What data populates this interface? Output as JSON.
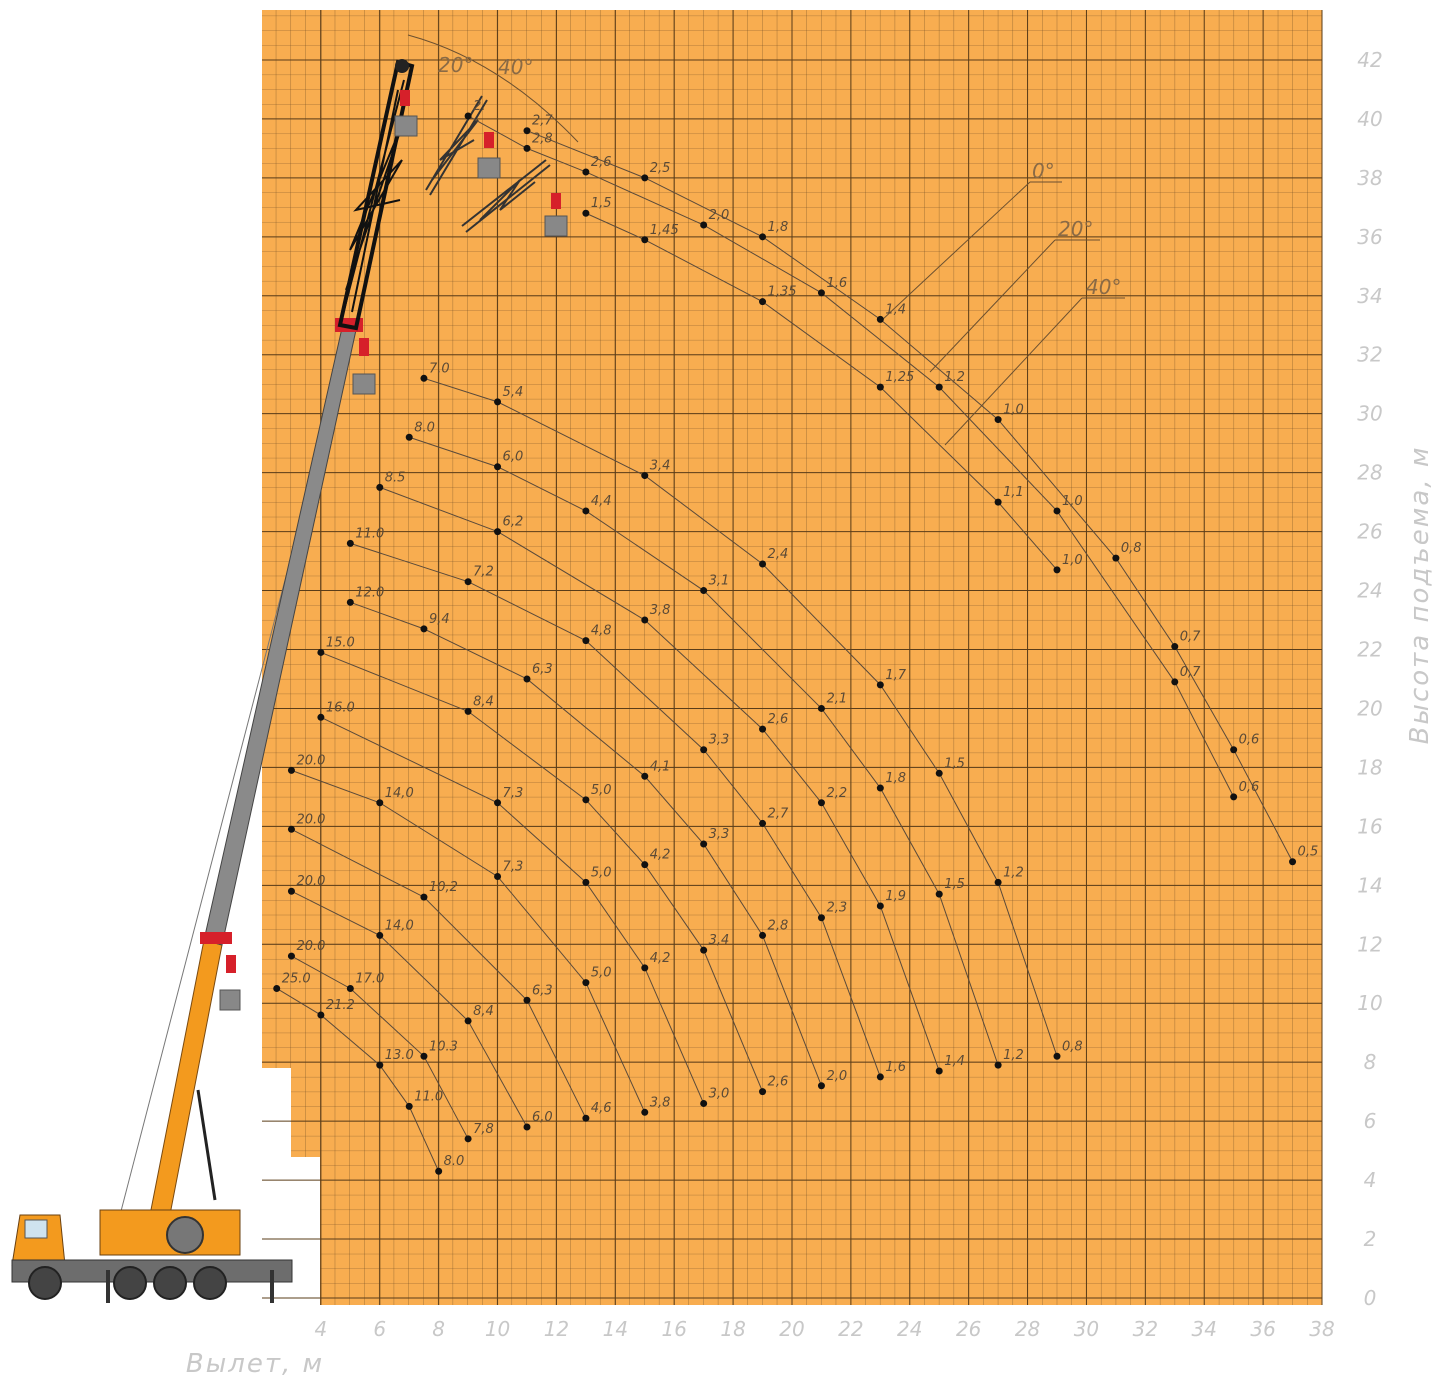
{
  "chart_data": {
    "type": "scatter",
    "xlabel": "Вылет, м",
    "ylabel": "Высота подъема, м",
    "xlim": [
      2,
      38
    ],
    "ylim": [
      0,
      44
    ],
    "xticks": [
      4,
      6,
      8,
      10,
      12,
      14,
      16,
      18,
      20,
      22,
      24,
      26,
      28,
      30,
      32,
      34,
      36,
      38
    ],
    "yticks": [
      0,
      2,
      4,
      6,
      8,
      10,
      12,
      14,
      16,
      18,
      20,
      22,
      24,
      26,
      28,
      30,
      32,
      34,
      36,
      38,
      40,
      42
    ],
    "grid": true,
    "background": "#f8ad50",
    "point_color": "#111111",
    "line_color": "#5a4a3a",
    "annotations": [
      "0°",
      "20°",
      "40°",
      "20°",
      "40°"
    ],
    "series": [
      {
        "x": [
          11,
          15,
          19,
          23,
          27,
          31,
          33,
          35,
          37
        ],
        "values": [
          39.6,
          38.0,
          36.0,
          33.2,
          29.8,
          25.1,
          22.1,
          18.6,
          14.8
        ],
        "loads": [
          "2,7",
          "2,5",
          "1,8",
          "1,4",
          "1,0",
          "0,8",
          "0,7",
          "0,6",
          "0,5"
        ]
      },
      {
        "x": [
          9,
          11,
          13,
          17,
          21,
          25,
          29,
          33,
          35
        ],
        "values": [
          40.1,
          39.0,
          38.2,
          36.4,
          34.1,
          30.9,
          26.7,
          20.9,
          17.0
        ],
        "loads": [
          "2.",
          "2,8",
          "2,6",
          "2,0",
          "1,6",
          "1,2",
          "1,0",
          "0,7",
          "0,6"
        ]
      },
      {
        "x": [
          13,
          15,
          19,
          23,
          27,
          29
        ],
        "values": [
          36.8,
          35.9,
          33.8,
          30.9,
          27.0,
          24.7
        ],
        "loads": [
          "1,5",
          "1,45",
          "1,35",
          "1,25",
          "1,1",
          "1,0"
        ]
      },
      {
        "x": [
          7.5,
          10,
          15,
          19,
          23,
          25,
          27,
          29
        ],
        "values": [
          31.2,
          30.4,
          27.9,
          24.9,
          20.8,
          17.8,
          14.1,
          8.2
        ],
        "loads": [
          "7.0",
          "5,4",
          "3,4",
          "2,4",
          "1,7",
          "1,5",
          "1,2",
          "0,8"
        ]
      },
      {
        "x": [
          7,
          10,
          13,
          17,
          21,
          23,
          25,
          27
        ],
        "values": [
          29.2,
          28.2,
          26.7,
          24.0,
          20.0,
          17.3,
          13.7,
          7.9
        ],
        "loads": [
          "8.0",
          "6,0",
          "4,4",
          "3,1",
          "2,1",
          "1,8",
          "1,5",
          "1,2"
        ]
      },
      {
        "x": [
          6,
          10,
          15,
          19,
          21,
          23,
          25
        ],
        "values": [
          27.5,
          26.0,
          23.0,
          19.3,
          16.8,
          13.3,
          7.7
        ],
        "loads": [
          "8.5",
          "6,2",
          "3,8",
          "2,6",
          "2,2",
          "1,9",
          "1,4"
        ]
      },
      {
        "x": [
          5,
          9,
          13,
          17,
          19,
          21,
          23
        ],
        "values": [
          25.6,
          24.3,
          22.3,
          18.6,
          16.1,
          12.9,
          7.5
        ],
        "loads": [
          "11.0",
          "7,2",
          "4,8",
          "3,3",
          "2,7",
          "2,3",
          "1,6"
        ]
      },
      {
        "x": [
          5,
          7.5,
          11,
          15,
          17,
          19,
          21
        ],
        "values": [
          23.6,
          22.7,
          21.0,
          17.7,
          15.4,
          12.3,
          7.2
        ],
        "loads": [
          "12.0",
          "9,4",
          "6,3",
          "4,1",
          "3,3",
          "2,8",
          "2,0"
        ]
      },
      {
        "x": [
          4,
          9,
          13,
          15,
          17,
          19
        ],
        "values": [
          21.9,
          19.9,
          16.9,
          14.7,
          11.8,
          7.0
        ],
        "loads": [
          "15.0",
          "8,4",
          "5,0",
          "4,2",
          "3,4",
          "2,6"
        ]
      },
      {
        "x": [
          4,
          10,
          13,
          15,
          17
        ],
        "values": [
          19.7,
          16.8,
          14.1,
          11.2,
          6.6
        ],
        "loads": [
          "16.0",
          "7,3",
          "5,0",
          "4,2",
          "3,0"
        ]
      },
      {
        "x": [
          3,
          6,
          10,
          13,
          15
        ],
        "values": [
          17.9,
          16.8,
          14.3,
          10.7,
          6.3
        ],
        "loads": [
          "20.0",
          "14,0",
          "7,3",
          "5,0",
          "3,8"
        ]
      },
      {
        "x": [
          3,
          7.5,
          11,
          13
        ],
        "values": [
          15.9,
          13.6,
          10.1,
          6.1
        ],
        "loads": [
          "20.0",
          "10,2",
          "6,3",
          "4,6"
        ]
      },
      {
        "x": [
          3,
          6,
          9,
          11
        ],
        "values": [
          13.8,
          12.3,
          9.4,
          5.8
        ],
        "loads": [
          "20.0",
          "14,0",
          "8,4",
          "6,0"
        ]
      },
      {
        "x": [
          3,
          5,
          7.5,
          9
        ],
        "values": [
          11.6,
          10.5,
          8.2,
          5.4
        ],
        "loads": [
          "20.0",
          "17.0",
          "10.3",
          "7,8"
        ]
      },
      {
        "x": [
          2.5,
          4,
          6,
          7,
          8
        ],
        "values": [
          10.5,
          9.6,
          7.9,
          6.5,
          4.3
        ],
        "loads": [
          "25.0",
          "21.2",
          "13.0",
          "11.0",
          "8.0"
        ]
      }
    ]
  }
}
